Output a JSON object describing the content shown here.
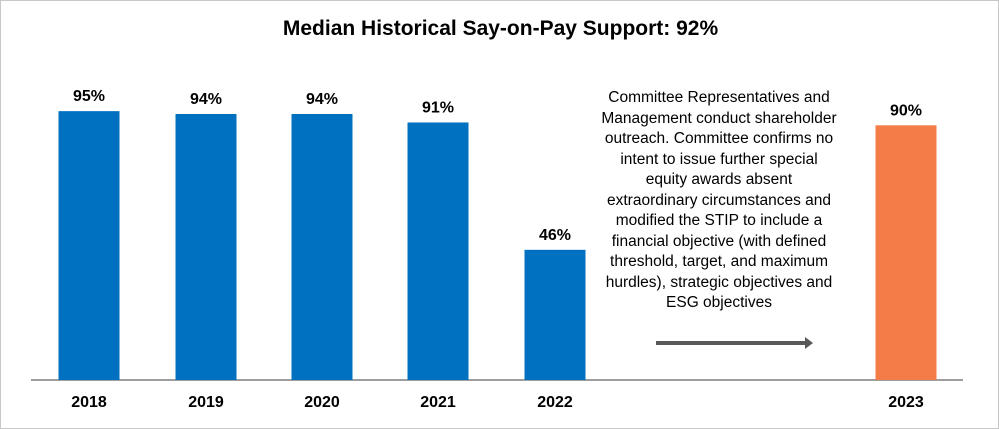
{
  "chart_data": {
    "type": "bar",
    "title": "Median Historical Say-on-Pay Support: 92%",
    "categories": [
      "2018",
      "2019",
      "2020",
      "2021",
      "2022",
      "2023"
    ],
    "values": [
      95,
      94,
      94,
      91,
      46,
      90
    ],
    "data_labels": [
      "95%",
      "94%",
      "94%",
      "91%",
      "46%",
      "90%"
    ],
    "colors": [
      "#0070c0",
      "#0070c0",
      "#0070c0",
      "#0070c0",
      "#0070c0",
      "#f47c48"
    ],
    "ylim": [
      0,
      100
    ],
    "xlabel": "",
    "ylabel": "",
    "grid": false,
    "annotation": "Committee Representatives and Management conduct shareholder outreach. Committee confirms no intent to issue further special equity awards absent extraordinary circumstances and modified the STIP to include a financial objective (with defined threshold, target, and maximum hurdles), strategic objectives and ESG objectives"
  }
}
